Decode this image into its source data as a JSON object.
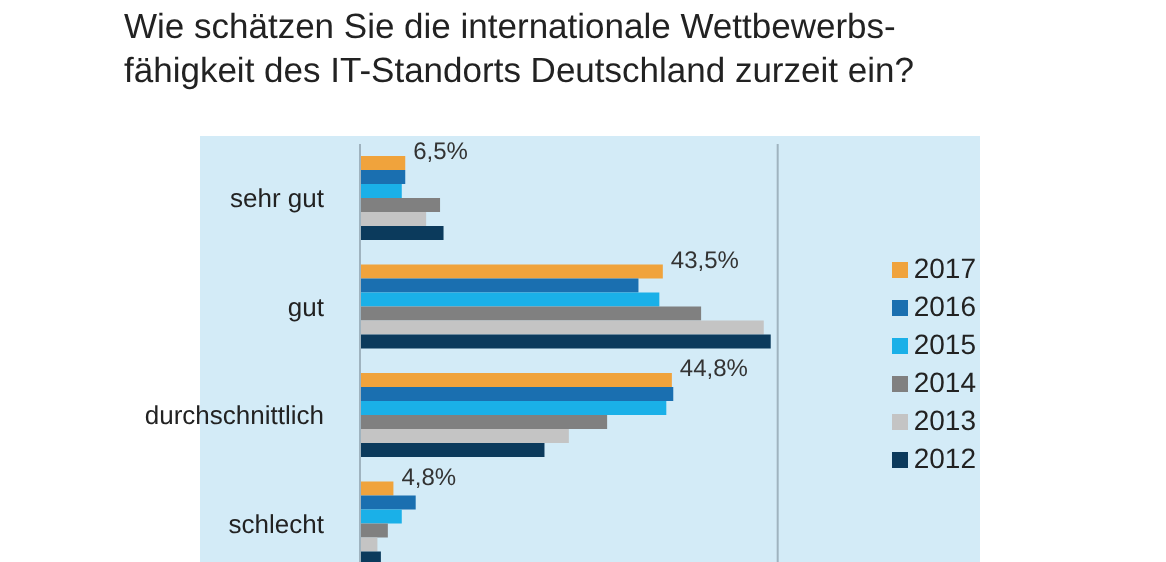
{
  "chart_data": {
    "type": "bar",
    "orientation": "horizontal",
    "title": "Wie schätzen Sie die internationale Wettbewerbs-\nfähigkeit des IT-Standorts Deutschland zurzeit ein?",
    "categories": [
      "sehr gut",
      "gut",
      "durchschnittlich",
      "schlecht"
    ],
    "series": [
      {
        "name": "2017",
        "color": "#f0a33c",
        "values": [
          6.5,
          43.5,
          44.8,
          4.8
        ],
        "value_labels": [
          "6,5%",
          "43,5%",
          "44,8%",
          "4,8%"
        ]
      },
      {
        "name": "2016",
        "color": "#1a6fb0",
        "values": [
          6.5,
          40,
          45,
          8
        ]
      },
      {
        "name": "2015",
        "color": "#1ab0e8",
        "values": [
          6,
          43,
          44,
          6
        ]
      },
      {
        "name": "2014",
        "color": "#808080",
        "values": [
          11.5,
          49,
          35.5,
          4
        ]
      },
      {
        "name": "2013",
        "color": "#c4c4c4",
        "values": [
          9.5,
          58,
          30,
          2.5
        ]
      },
      {
        "name": "2012",
        "color": "#0b3a5c",
        "values": [
          12,
          59,
          26.5,
          3
        ]
      }
    ],
    "xlim": [
      0,
      60
    ],
    "tick_labels": "y",
    "legend": "right"
  }
}
